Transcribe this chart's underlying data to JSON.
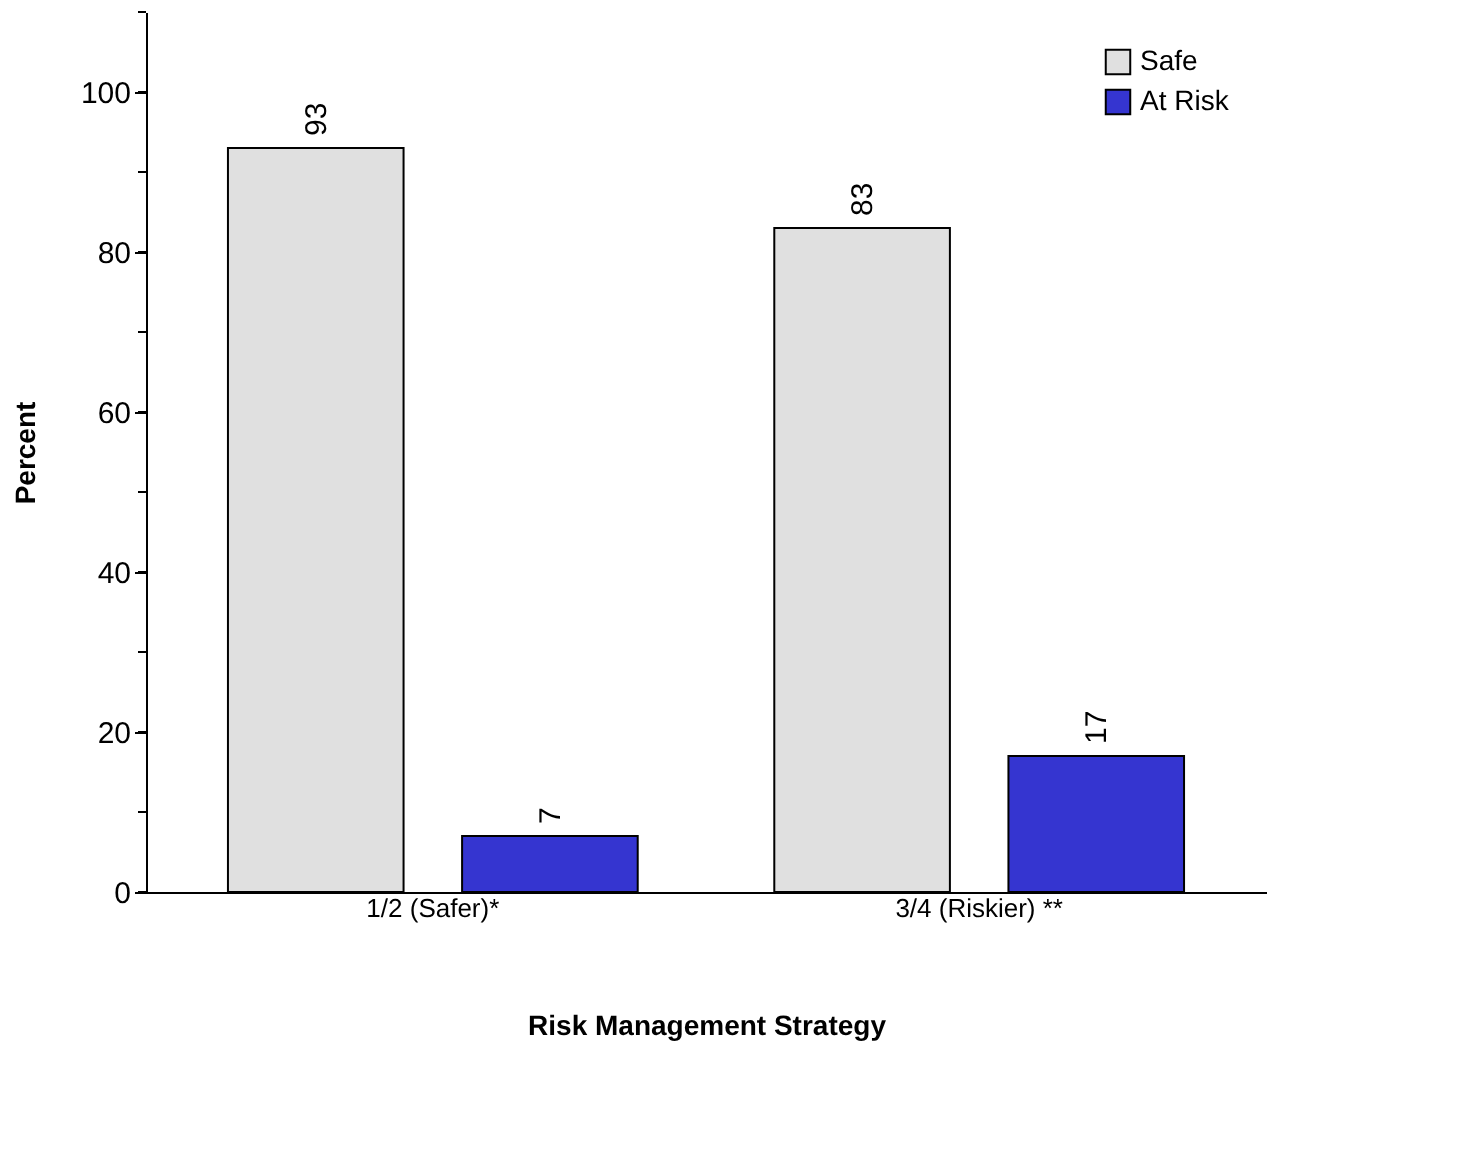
{
  "chart_data": {
    "type": "bar",
    "xlabel": "Risk Management Strategy",
    "ylabel": "Percent",
    "categories": [
      "1/2 (Safer)*",
      "3/4 (Riskier) **"
    ],
    "series": [
      {
        "name": "Safe",
        "color": "#e0e0e0",
        "values": [
          93,
          83
        ]
      },
      {
        "name": "At Risk",
        "color": "#3535d0",
        "values": [
          7,
          17
        ]
      }
    ],
    "ylim": [
      0,
      110
    ],
    "yticks": [
      0,
      {
        "value": 10,
        "label": null
      },
      20,
      {
        "value": 30,
        "label": null
      },
      40,
      {
        "value": 50,
        "label": null
      },
      60,
      {
        "value": 70,
        "label": null
      },
      80,
      {
        "value": 90,
        "label": null
      },
      100,
      {
        "value": 110,
        "label": null
      }
    ],
    "data_labels": true,
    "legend": "top right",
    "grid": false
  }
}
